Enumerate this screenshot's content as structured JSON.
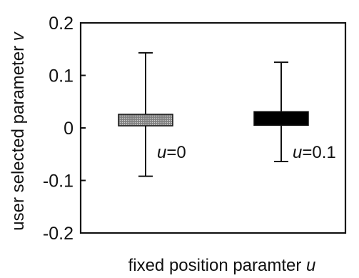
{
  "chart_data": {
    "type": "bar",
    "xlabel": "fixed position paramter",
    "xlabel_var": "u",
    "ylabel": "user selected parameter",
    "ylabel_var": "v",
    "ylim": [
      -0.2,
      0.2
    ],
    "yticks": [
      {
        "value": 0.2,
        "label": "0.2"
      },
      {
        "value": 0.1,
        "label": "0.1"
      },
      {
        "value": 0,
        "label": "0"
      },
      {
        "value": -0.1,
        "label": "-0.1"
      },
      {
        "value": -0.2,
        "label": "-0.2"
      }
    ],
    "grid": false,
    "series": [
      {
        "category": 0,
        "label_var": "u",
        "label_value": "=0",
        "mean": 0.015,
        "bar_low": 0.004,
        "bar_high": 0.026,
        "error_low": -0.092,
        "error_high": 0.143,
        "fill": "#9a9a9a",
        "pattern": "stipple"
      },
      {
        "category": 1,
        "label_var": "u",
        "label_value": "=0.1",
        "mean": 0.018,
        "bar_low": 0.005,
        "bar_high": 0.031,
        "error_low": -0.064,
        "error_high": 0.125,
        "fill": "#000000",
        "pattern": "solid"
      }
    ],
    "colors": {
      "axis": "#111111",
      "background": "#ffffff"
    }
  }
}
